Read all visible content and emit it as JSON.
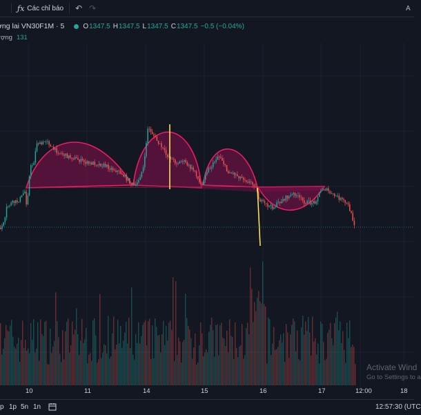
{
  "toolbar": {
    "fx_symbol": "ƒx",
    "indicators_label": "Các chỉ báo",
    "undo_icon": "undo-icon",
    "redo_icon": "redo-icon",
    "corner_glyph": "A"
  },
  "legend": {
    "symbol_title": "ơng lai VN30F1M · 5",
    "status_dot_color": "#26a69a",
    "open_key": "O",
    "open": "1347.5",
    "high_key": "H",
    "high": "1347.5",
    "low_key": "L",
    "low": "1347.5",
    "close_key": "C",
    "close": "1347.5",
    "change": "−0.5 (−0.04%)",
    "volume_label": "rợng",
    "volume_value": "131"
  },
  "colors": {
    "background": "#131722",
    "up": "#26a69a",
    "down": "#ef5350",
    "pattern": "#e91e63",
    "pattern_fill": "#880e4f",
    "measure": "#f7e35a",
    "grid": "#1e222d"
  },
  "chart_data": {
    "type": "candlestick",
    "symbol": "VN30F1M",
    "timeframe": "5",
    "x_ticks": [
      "10",
      "11",
      "14",
      "15",
      "16",
      "17",
      "12:00",
      "18"
    ],
    "last_price": 1347.5,
    "patterns": [
      "arc",
      "arc",
      "arc",
      "arc"
    ]
  },
  "watermark": {
    "line1": "Activate Wind",
    "line2": "Go to Settings to a"
  },
  "bottombar": {
    "ranges": [
      "p",
      "1p",
      "5n",
      "1n"
    ],
    "goto_icon": "calendar-range-icon",
    "clock": "12:57:30 (UTC"
  }
}
